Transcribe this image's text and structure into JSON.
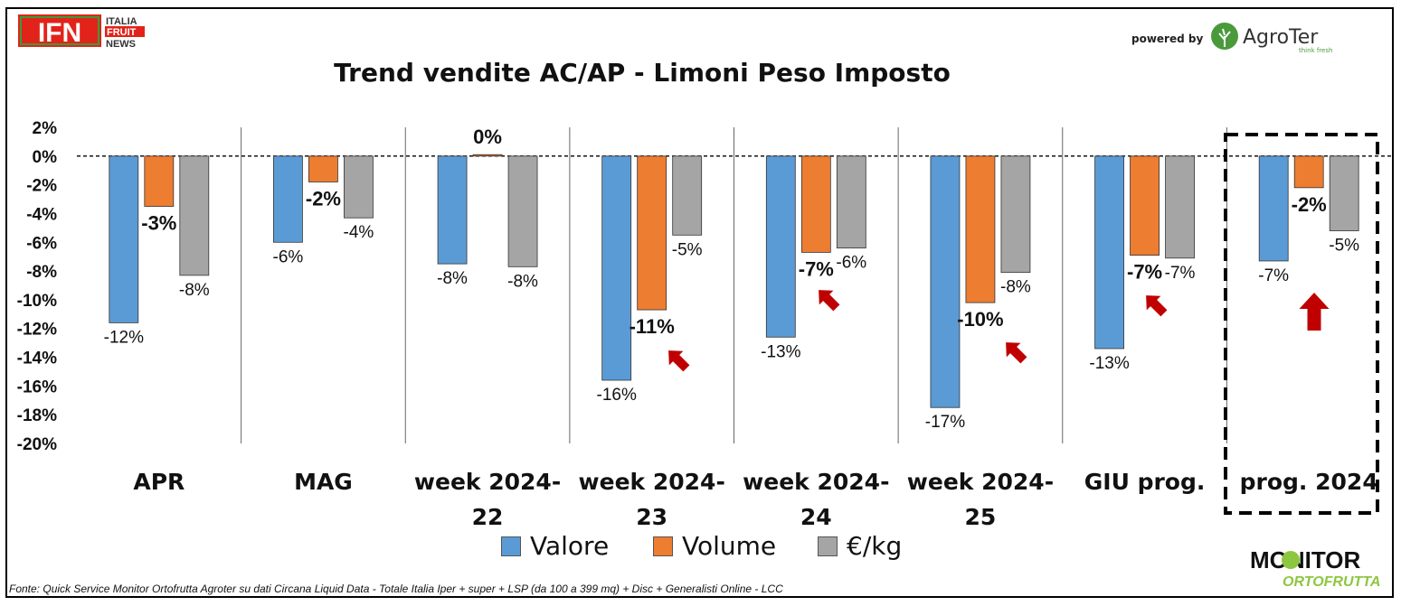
{
  "header": {
    "title": "Trend vendite AC/AP - Limoni Peso Imposto",
    "powered_by": "powered by",
    "ifn_logo": "IFN",
    "ifn_line1": "ITALIA",
    "ifn_line2": "FRUIT",
    "ifn_line3": "NEWS",
    "agroter_name": "AgroTer",
    "agroter_tagline": "think fresh"
  },
  "footer": {
    "source": "Fonte: Quick Service Monitor Ortofrutta Agroter su dati Circana Liquid Data - Totale Italia Iper + super + LSP (da 100 a 399 mq) + Disc + Generalisti Online - LCC",
    "monitor_line1": "MONITOR",
    "monitor_line2": "ORTOFRUTTA"
  },
  "colors": {
    "valore": "#5B9BD5",
    "volume": "#ED7D31",
    "prezzo": "#A5A5A5",
    "arrow": "#C00000",
    "ifn_red": "#E2231A",
    "monitor_green": "#8DC63F"
  },
  "chart_data": {
    "type": "bar",
    "title": "Trend vendite AC/AP - Limoni Peso Imposto",
    "ylim": [
      -0.2,
      0.02
    ],
    "yticks": [
      0.02,
      0,
      -0.02,
      -0.04,
      -0.06,
      -0.08,
      -0.1,
      -0.12,
      -0.14,
      -0.16,
      -0.18,
      -0.2
    ],
    "ytick_labels": [
      "2%",
      "0%",
      "-2%",
      "-4%",
      "-6%",
      "-8%",
      "-10%",
      "-12%",
      "-14%",
      "-16%",
      "-18%",
      "-20%"
    ],
    "categories": [
      [
        "APR"
      ],
      [
        "MAG"
      ],
      [
        "week 2024-",
        "22"
      ],
      [
        "week 2024-",
        "23"
      ],
      [
        "week 2024-",
        "24"
      ],
      [
        "week 2024-",
        "25"
      ],
      [
        "GIU prog."
      ],
      [
        "prog. 2024"
      ]
    ],
    "series": [
      {
        "name": "Valore",
        "values": [
          -0.116,
          -0.06,
          -0.075,
          -0.156,
          -0.126,
          -0.175,
          -0.134,
          -0.073
        ],
        "labels": [
          "-12%",
          "-6%",
          "-8%",
          "-16%",
          "-13%",
          "-17%",
          "-13%",
          "-7%"
        ]
      },
      {
        "name": "Volume",
        "values": [
          -0.035,
          -0.018,
          0.001,
          -0.107,
          -0.067,
          -0.102,
          -0.069,
          -0.022
        ],
        "labels": [
          "-3%",
          "-2%",
          "0%",
          "-11%",
          "-7%",
          "-10%",
          "-7%",
          "-2%"
        ]
      },
      {
        "name": "€/kg",
        "values": [
          -0.083,
          -0.043,
          -0.077,
          -0.055,
          -0.064,
          -0.081,
          -0.071,
          -0.052
        ],
        "labels": [
          "-8%",
          "-4%",
          "-8%",
          "-5%",
          "-6%",
          "-8%",
          "-7%",
          "-5%"
        ]
      }
    ],
    "arrows_under_categories": [
      "week 2024-23",
      "week 2024-24",
      "week 2024-25",
      "GIU prog.",
      "prog. 2024"
    ],
    "highlighted_category": "prog. 2024",
    "legend_position": "bottom",
    "grid": false
  }
}
